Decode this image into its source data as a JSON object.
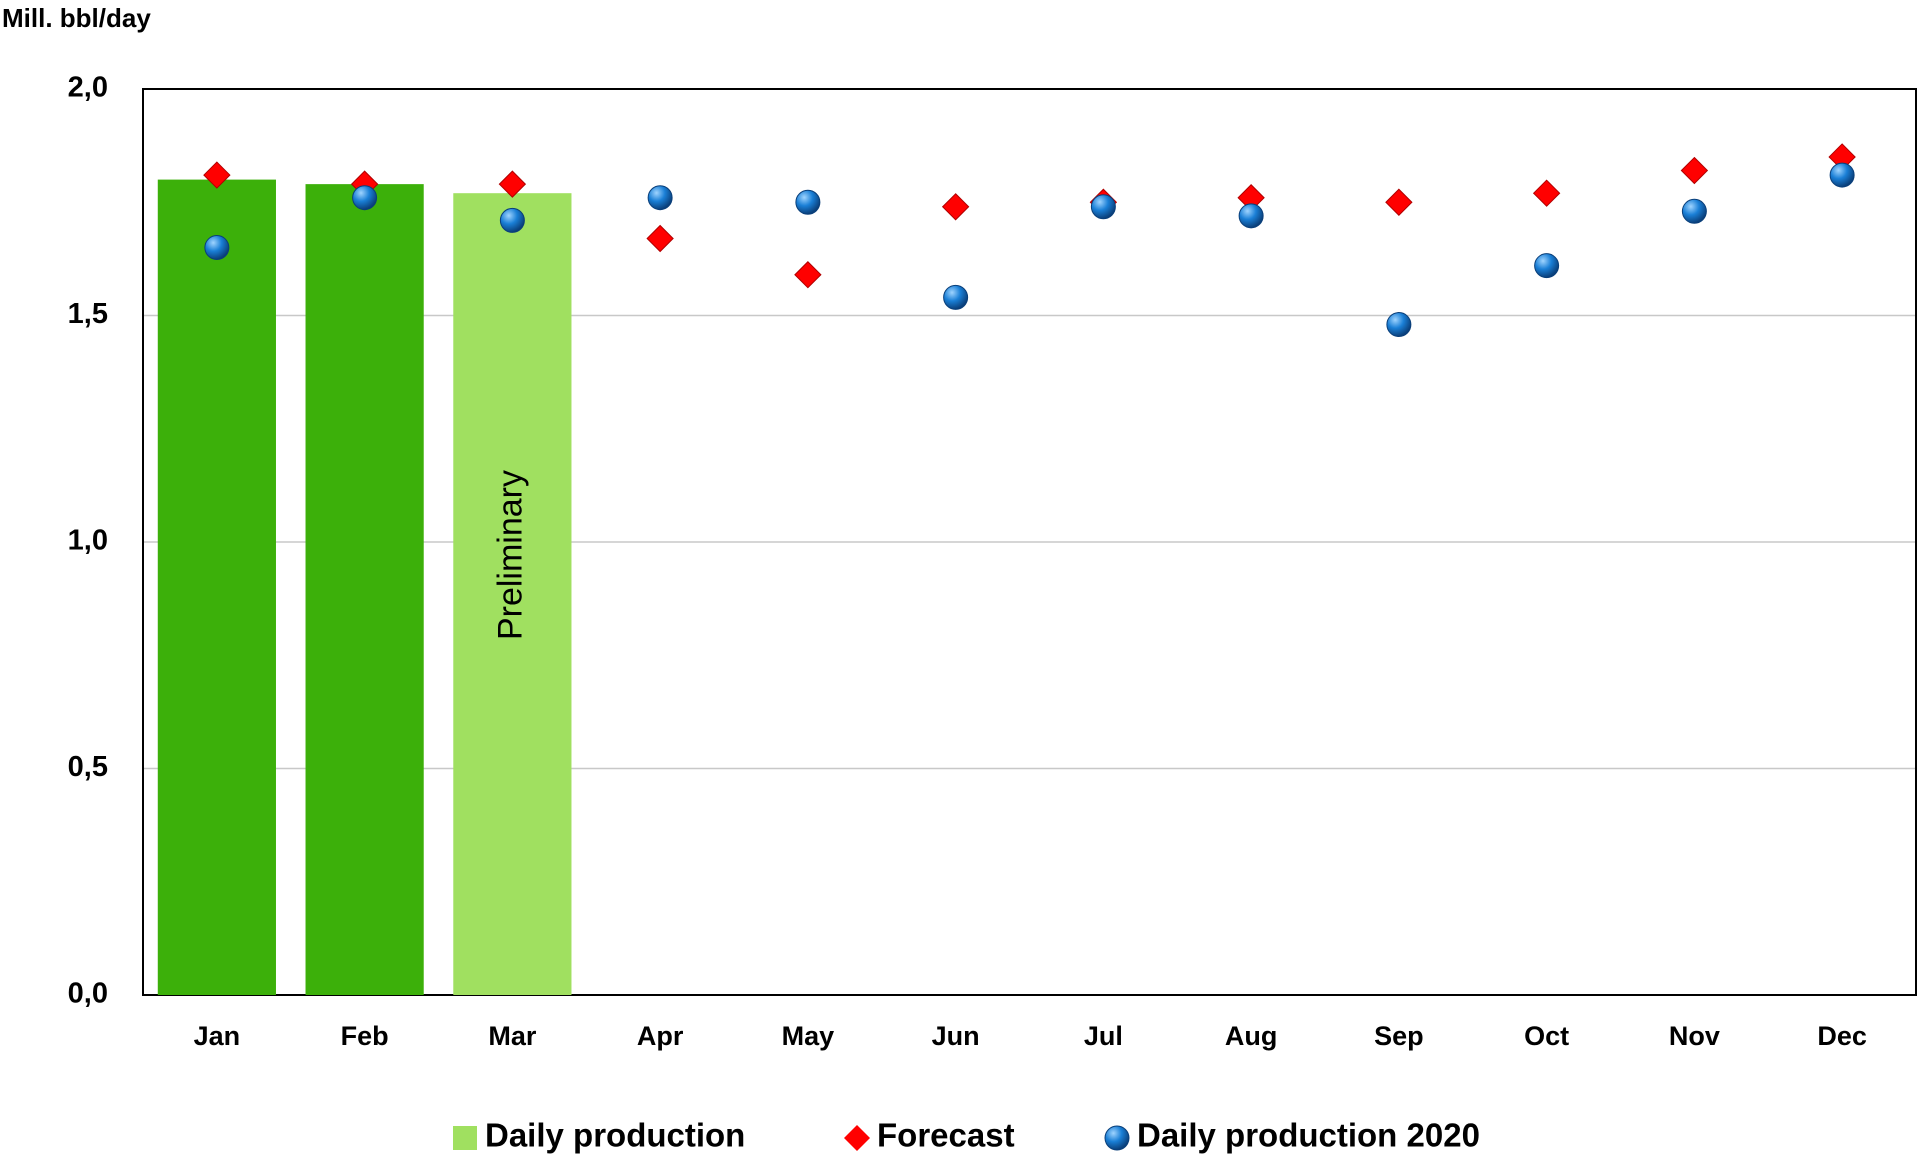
{
  "chart_data": {
    "type": "bar-scatter",
    "y_label": "Mill. bbl/day",
    "categories": [
      "Jan",
      "Feb",
      "Mar",
      "Apr",
      "May",
      "Jun",
      "Jul",
      "Aug",
      "Sep",
      "Oct",
      "Nov",
      "Dec"
    ],
    "series": [
      {
        "name": "Daily production",
        "type": "bar",
        "color": "#a0e060",
        "colors": [
          "#3cb00a",
          "#3cb00a",
          "#a0e060",
          null,
          null,
          null,
          null,
          null,
          null,
          null,
          null,
          null
        ],
        "values": [
          1.8,
          1.79,
          1.77,
          null,
          null,
          null,
          null,
          null,
          null,
          null,
          null,
          null
        ]
      },
      {
        "name": "Forecast",
        "type": "diamond",
        "color": "#ff0000",
        "values": [
          1.81,
          1.79,
          1.79,
          1.67,
          1.59,
          1.74,
          1.75,
          1.76,
          1.75,
          1.77,
          1.82,
          1.85
        ]
      },
      {
        "name": "Daily production 2020",
        "type": "circle",
        "color": "#1a7fd6",
        "values": [
          1.65,
          1.76,
          1.71,
          1.76,
          1.75,
          1.54,
          1.74,
          1.72,
          1.48,
          1.61,
          1.73,
          1.81
        ]
      }
    ],
    "annotation": {
      "text": "Preliminary",
      "category": 2
    },
    "ylim": [
      0,
      2
    ],
    "yticks": [
      {
        "value": 0,
        "label": "0,0"
      },
      {
        "value": 0.5,
        "label": "0,5"
      },
      {
        "value": 1,
        "label": "1,0"
      },
      {
        "value": 1.5,
        "label": "1,5"
      },
      {
        "value": 2,
        "label": "2,0"
      }
    ],
    "grid": true
  }
}
